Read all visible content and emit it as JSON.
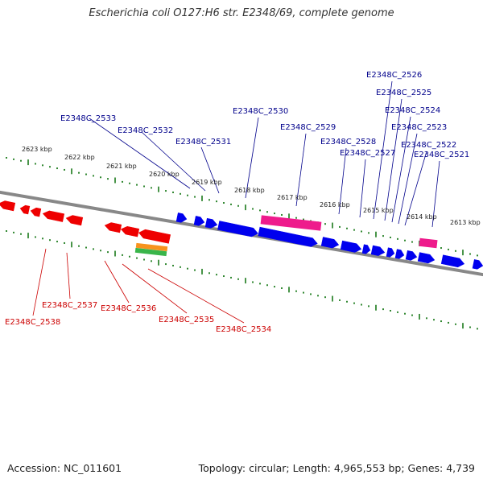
{
  "title": "Escherichia coli O127:H6 str. E2348/69, complete genome",
  "footer": {
    "accession": "Accession: NC_011601",
    "summary": "Topology: circular; Length: 4,965,553 bp; Genes: 4,739"
  },
  "kbp_ticks": [
    {
      "kbp": 2623,
      "label": "2623 kbp"
    },
    {
      "kbp": 2622,
      "label": "2622 kbp"
    },
    {
      "kbp": 2621,
      "label": "2621 kbp"
    },
    {
      "kbp": 2620,
      "label": "2620 kbp"
    },
    {
      "kbp": 2619,
      "label": "2619 kbp"
    },
    {
      "kbp": 2618,
      "label": "2618 kbp"
    },
    {
      "kbp": 2617,
      "label": "2617 kbp"
    },
    {
      "kbp": 2616,
      "label": "2616 kbp"
    },
    {
      "kbp": 2615,
      "label": "2615 kbp"
    },
    {
      "kbp": 2614,
      "label": "2614 kbp"
    },
    {
      "kbp": 2613,
      "label": "2613 kbp"
    }
  ],
  "genes_top": [
    "E2348C_2533",
    "E2348C_2532",
    "E2348C_2531",
    "E2348C_2530",
    "E2348C_2529",
    "E2348C_2528",
    "E2348C_2527",
    "E2348C_2526",
    "E2348C_2525",
    "E2348C_2524",
    "E2348C_2523",
    "E2348C_2522",
    "E2348C_2521"
  ],
  "genes_bottom": [
    "E2348C_2538",
    "E2348C_2537",
    "E2348C_2536",
    "E2348C_2535",
    "E2348C_2534"
  ],
  "colors": {
    "forward_gene": "#0000ee",
    "reverse_gene": "#ee0000",
    "pink_feature": "#ee1b8c",
    "orange_feature": "#f7931e",
    "green_feature": "#39b54a",
    "tick_green": "#1a7a1a",
    "backbone": "#888888",
    "top_label": "#00008b",
    "bottom_label": "#cc0000"
  }
}
